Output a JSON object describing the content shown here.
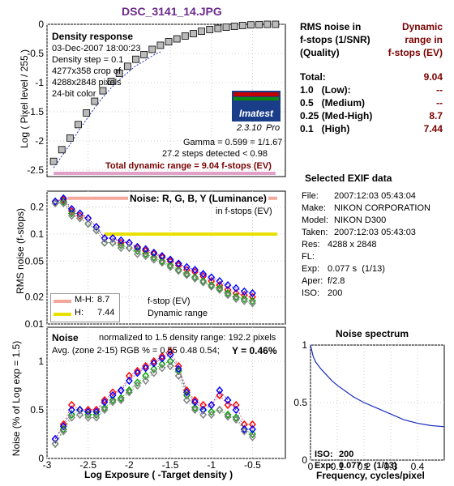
{
  "header": {
    "filename": "DSC_3141_14.JPG"
  },
  "density_panel": {
    "title": "Density response",
    "info": [
      "03-Dec-2007 18:00:23",
      "Density step = 0.1",
      "4277x358 crop of",
      "4288x2848 pixels",
      "24-bit color"
    ],
    "logo_text": "Imatest",
    "version": "2.3.10",
    "version_suffix": "Pro",
    "gamma_text": "Gamma = 0.599 = 1/1.67",
    "steps_text": "27.2 steps detected < 0.98",
    "total_text": "Total dynamic range = 9.04 f-stops (EV)",
    "ylabel": "Log ( Pixel level / 255 )",
    "yticks": [
      "0",
      "-0.5",
      "-1",
      "-1.5",
      "-2",
      "-2.5"
    ]
  },
  "noise_fstop_panel": {
    "title": "Noise: R, G, B, Y (Luminance)",
    "subtitle": "in f-stops (EV)",
    "ylabel": "RMS noise (f-stops)",
    "yticks": [
      "0.2",
      "0.1",
      "0.05",
      "0.02",
      "0.01"
    ],
    "legend": [
      {
        "label": "M-H:",
        "value": "8.7",
        "color": "#f4a79a"
      },
      {
        "label": "H:",
        "value": "7.44",
        "color": "#e8e000"
      }
    ],
    "note1": "f-stop (EV)",
    "note2": "Dynamic range"
  },
  "noise_pct_panel": {
    "title": "Noise",
    "norm_text": "normalized to 1.5 density range: 192.2 pixels",
    "avg_text": "Avg. (zone 2-15) RGB % = 0.55  0.48  0.54;",
    "y_text": "Y = 0.46%",
    "ylabel": "Noise (% of Log exp = 1.5)",
    "yticks": [
      "1",
      "0.5",
      "0"
    ],
    "xticks": [
      "-3",
      "-2.5",
      "-2",
      "-1.5",
      "-1",
      "-0.5"
    ],
    "xlabel": "Log Exposure ( -Target density )"
  },
  "rms_table": {
    "heading_left": [
      "RMS noise in",
      "f-stops (1/SNR)",
      "(Quality)"
    ],
    "heading_right": [
      "Dynamic",
      "range in",
      "f-stops (EV)"
    ],
    "rows": [
      {
        "label": "Total:",
        "value": "9.04"
      },
      {
        "label": "1.0   (Low):",
        "value": "--"
      },
      {
        "label": "0.5   (Medium)",
        "value": "--"
      },
      {
        "label": "0.25 (Med-High)",
        "value": "8.7"
      },
      {
        "label": "0.1   (High)",
        "value": "7.44"
      }
    ]
  },
  "exif": {
    "title": "Selected EXIF data",
    "rows": [
      {
        "k": "File:",
        "v": "2007:12:03 05:43:04"
      },
      {
        "k": "Make:",
        "v": "NIKON CORPORATION"
      },
      {
        "k": "Model:",
        "v": "NIKON D300"
      },
      {
        "k": "Taken:",
        "v": "2007:12:03 05:43:03"
      },
      {
        "k": "Res:",
        "v": "4288 x 2848"
      },
      {
        "k": "FL:",
        "v": ""
      },
      {
        "k": "Exp:",
        "v": "0.077 s  (1/13)"
      },
      {
        "k": "Aper:",
        "v": "f/2.8"
      },
      {
        "k": "ISO:",
        "v": "200"
      }
    ]
  },
  "spectrum": {
    "title": "Noise spectrum",
    "iso_label": "ISO:",
    "iso_value": "200",
    "exp_label": "Exp:",
    "exp_value": "0.077 s  (1/13)",
    "xlabel": "Frequency, cycles/pixel",
    "xticks": [
      "0",
      "0.1",
      "0.2",
      "0.3",
      "0.4"
    ],
    "yticks": [
      "1",
      "0.5",
      "0"
    ]
  },
  "chart_data": [
    {
      "type": "scatter",
      "panel": "density",
      "title": "Density response",
      "ylabel": "Log ( Pixel level / 255 )",
      "xlim": [
        -3,
        -0.1
      ],
      "ylim": [
        -2.5,
        0
      ],
      "x": [
        -2.92,
        -2.82,
        -2.72,
        -2.62,
        -2.52,
        -2.42,
        -2.32,
        -2.22,
        -2.12,
        -2.02,
        -1.92,
        -1.82,
        -1.72,
        -1.62,
        -1.52,
        -1.42,
        -1.32,
        -1.22,
        -1.12,
        -1.02,
        -0.92,
        -0.82,
        -0.72,
        -0.62,
        -0.52,
        -0.42,
        -0.32,
        -0.22
      ],
      "y": [
        -2.35,
        -2.15,
        -1.95,
        -1.72,
        -1.52,
        -1.32,
        -1.14,
        -0.98,
        -0.84,
        -0.72,
        -0.6,
        -0.52,
        -0.43,
        -0.36,
        -0.3,
        -0.25,
        -0.2,
        -0.16,
        -0.12,
        -0.09,
        -0.07,
        -0.05,
        -0.035,
        -0.02,
        -0.01,
        -0.005,
        0,
        0
      ]
    },
    {
      "type": "scatter",
      "panel": "noise_fstops",
      "title": "Noise: R, G, B, Y (Luminance)",
      "ylabel": "RMS noise (f-stops)",
      "yscale": "log",
      "ylim": [
        0.01,
        0.3
      ],
      "xlim": [
        -3,
        -0.1
      ],
      "x": [
        -2.9,
        -2.8,
        -2.7,
        -2.6,
        -2.5,
        -2.4,
        -2.3,
        -2.2,
        -2.1,
        -2.0,
        -1.9,
        -1.8,
        -1.7,
        -1.6,
        -1.5,
        -1.4,
        -1.3,
        -1.2,
        -1.1,
        -1.0,
        -0.9,
        -0.8,
        -0.7,
        -0.6,
        -0.5
      ],
      "series": [
        {
          "name": "R",
          "color": "#ff0000",
          "values": [
            0.23,
            0.24,
            0.18,
            0.16,
            0.15,
            0.12,
            0.09,
            0.09,
            0.08,
            0.08,
            0.07,
            0.065,
            0.06,
            0.055,
            0.05,
            0.045,
            0.04,
            0.038,
            0.034,
            0.03,
            0.027,
            0.024,
            0.022,
            0.021,
            0.02
          ]
        },
        {
          "name": "G",
          "color": "#00a000",
          "values": [
            0.22,
            0.23,
            0.17,
            0.15,
            0.13,
            0.11,
            0.08,
            0.08,
            0.075,
            0.07,
            0.065,
            0.06,
            0.055,
            0.05,
            0.045,
            0.04,
            0.036,
            0.033,
            0.03,
            0.027,
            0.025,
            0.022,
            0.02,
            0.019,
            0.018
          ]
        },
        {
          "name": "B",
          "color": "#0000ff",
          "values": [
            0.23,
            0.25,
            0.19,
            0.17,
            0.15,
            0.12,
            0.09,
            0.09,
            0.085,
            0.08,
            0.072,
            0.068,
            0.062,
            0.057,
            0.052,
            0.047,
            0.043,
            0.04,
            0.036,
            0.033,
            0.03,
            0.027,
            0.025,
            0.023,
            0.022
          ]
        },
        {
          "name": "Y",
          "color": "#808080",
          "values": [
            0.22,
            0.22,
            0.16,
            0.15,
            0.13,
            0.11,
            0.08,
            0.08,
            0.07,
            0.07,
            0.06,
            0.057,
            0.052,
            0.048,
            0.043,
            0.039,
            0.035,
            0.032,
            0.029,
            0.026,
            0.024,
            0.021,
            0.019,
            0.018,
            0.017
          ]
        }
      ],
      "thresholds": [
        {
          "label": "M-H",
          "value": 0.25,
          "x_start": -2.75,
          "color": "#f4a79a"
        },
        {
          "label": "H",
          "value": 0.1,
          "x_start": -2.3,
          "color": "#e8e000"
        }
      ]
    },
    {
      "type": "scatter",
      "panel": "noise_percent",
      "title": "Noise",
      "xlabel": "Log Exposure ( -Target density )",
      "ylabel": "Noise (% of Log exp = 1.5)",
      "xlim": [
        -3,
        -0.1
      ],
      "ylim": [
        0,
        1.35
      ],
      "x": [
        -2.9,
        -2.8,
        -2.7,
        -2.6,
        -2.5,
        -2.4,
        -2.3,
        -2.2,
        -2.1,
        -2.0,
        -1.9,
        -1.8,
        -1.7,
        -1.6,
        -1.5,
        -1.4,
        -1.3,
        -1.2,
        -1.1,
        -1.0,
        -0.9,
        -0.8,
        -0.7,
        -0.6,
        -0.5
      ],
      "series": [
        {
          "name": "R",
          "color": "#ff0000",
          "values": [
            0.2,
            0.35,
            0.55,
            0.5,
            0.5,
            0.5,
            0.6,
            0.68,
            0.7,
            0.85,
            0.9,
            0.95,
            1.0,
            1.05,
            1.1,
            0.95,
            0.7,
            0.6,
            0.55,
            0.55,
            0.65,
            0.55,
            0.55,
            0.35,
            0.35
          ]
        },
        {
          "name": "G",
          "color": "#00a000",
          "values": [
            0.15,
            0.3,
            0.45,
            0.5,
            0.45,
            0.45,
            0.52,
            0.6,
            0.62,
            0.7,
            0.78,
            0.85,
            0.92,
            0.97,
            1.0,
            0.9,
            0.65,
            0.52,
            0.5,
            0.48,
            0.5,
            0.45,
            0.42,
            0.3,
            0.25
          ]
        },
        {
          "name": "B",
          "color": "#0000ff",
          "values": [
            0.2,
            0.33,
            0.5,
            0.5,
            0.48,
            0.48,
            0.58,
            0.65,
            0.7,
            0.8,
            0.88,
            0.93,
            0.98,
            1.03,
            1.07,
            0.92,
            0.68,
            0.58,
            0.5,
            0.55,
            0.7,
            0.6,
            0.5,
            0.3,
            0.3
          ]
        },
        {
          "name": "Y",
          "color": "#808080",
          "values": [
            0.15,
            0.28,
            0.42,
            0.45,
            0.42,
            0.42,
            0.5,
            0.58,
            0.6,
            0.68,
            0.75,
            0.8,
            0.88,
            0.93,
            0.95,
            0.85,
            0.6,
            0.5,
            0.45,
            0.45,
            0.5,
            0.43,
            0.4,
            0.28,
            0.22
          ]
        }
      ]
    },
    {
      "type": "line",
      "panel": "noise_spectrum",
      "title": "Noise spectrum",
      "xlabel": "Frequency, cycles/pixel",
      "xlim": [
        0,
        0.5
      ],
      "ylim": [
        0,
        1
      ],
      "x": [
        0,
        0.01,
        0.02,
        0.04,
        0.06,
        0.08,
        0.1,
        0.13,
        0.16,
        0.2,
        0.25,
        0.3,
        0.35,
        0.4,
        0.45,
        0.5
      ],
      "y": [
        1.0,
        0.9,
        0.85,
        0.79,
        0.74,
        0.69,
        0.65,
        0.6,
        0.55,
        0.5,
        0.45,
        0.4,
        0.35,
        0.32,
        0.3,
        0.29
      ]
    }
  ]
}
